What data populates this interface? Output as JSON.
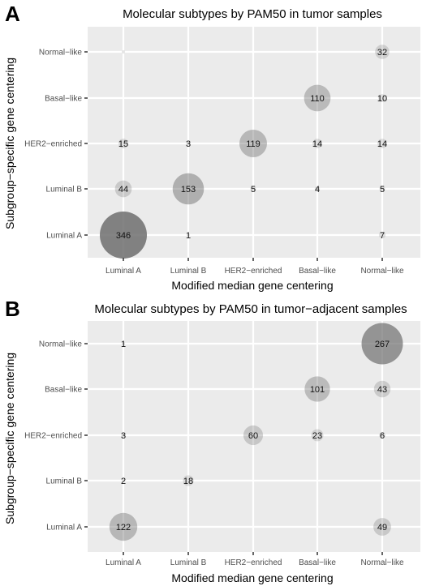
{
  "chart_data": [
    {
      "type": "scatter",
      "panel_letter": "A",
      "title": "Molecular subtypes by PAM50 in tumor samples",
      "xlabel": "Modified median gene centering",
      "ylabel": "Subgroup−specific gene centering",
      "x_categories": [
        "Luminal A",
        "Luminal B",
        "HER2−enriched",
        "Basal−like",
        "Normal−like"
      ],
      "y_categories": [
        "Luminal A",
        "Luminal B",
        "HER2−enriched",
        "Basal−like",
        "Normal−like"
      ],
      "grid": true,
      "points": [
        {
          "x": "Luminal A",
          "y": "Normal−like",
          "value": null
        },
        {
          "x": "Normal−like",
          "y": "Normal−like",
          "value": 32
        },
        {
          "x": "Basal−like",
          "y": "Basal−like",
          "value": 110
        },
        {
          "x": "Normal−like",
          "y": "Basal−like",
          "value": 10
        },
        {
          "x": "Luminal A",
          "y": "HER2−enriched",
          "value": 15
        },
        {
          "x": "Luminal B",
          "y": "HER2−enriched",
          "value": 3
        },
        {
          "x": "HER2−enriched",
          "y": "HER2−enriched",
          "value": 119
        },
        {
          "x": "Basal−like",
          "y": "HER2−enriched",
          "value": 14
        },
        {
          "x": "Normal−like",
          "y": "HER2−enriched",
          "value": 14
        },
        {
          "x": "Luminal A",
          "y": "Luminal B",
          "value": 44
        },
        {
          "x": "Luminal B",
          "y": "Luminal B",
          "value": 153
        },
        {
          "x": "HER2−enriched",
          "y": "Luminal B",
          "value": 5
        },
        {
          "x": "Basal−like",
          "y": "Luminal B",
          "value": 4
        },
        {
          "x": "Normal−like",
          "y": "Luminal B",
          "value": 5
        },
        {
          "x": "Luminal A",
          "y": "Luminal A",
          "value": 346
        },
        {
          "x": "Luminal B",
          "y": "Luminal A",
          "value": 1
        },
        {
          "x": "Normal−like",
          "y": "Luminal A",
          "value": 7
        }
      ]
    },
    {
      "type": "scatter",
      "panel_letter": "B",
      "title": "Molecular subtypes by PAM50 in tumor−adjacent samples",
      "xlabel": "Modified median gene centering",
      "ylabel": "Subgroup−specific gene centering",
      "x_categories": [
        "Luminal A",
        "Luminal B",
        "HER2−enriched",
        "Basal−like",
        "Normal−like"
      ],
      "y_categories": [
        "Luminal A",
        "Luminal B",
        "HER2−enriched",
        "Basal−like",
        "Normal−like"
      ],
      "grid": true,
      "points": [
        {
          "x": "Luminal A",
          "y": "Normal−like",
          "value": 1
        },
        {
          "x": "Normal−like",
          "y": "Normal−like",
          "value": 267
        },
        {
          "x": "Basal−like",
          "y": "Basal−like",
          "value": 101
        },
        {
          "x": "Normal−like",
          "y": "Basal−like",
          "value": 43
        },
        {
          "x": "Luminal A",
          "y": "HER2−enriched",
          "value": 3
        },
        {
          "x": "HER2−enriched",
          "y": "HER2−enriched",
          "value": 60
        },
        {
          "x": "Basal−like",
          "y": "HER2−enriched",
          "value": 23
        },
        {
          "x": "Normal−like",
          "y": "HER2−enriched",
          "value": 6
        },
        {
          "x": "Luminal A",
          "y": "Luminal B",
          "value": 2
        },
        {
          "x": "Luminal B",
          "y": "Luminal B",
          "value": 18
        },
        {
          "x": "Luminal A",
          "y": "Luminal A",
          "value": 122
        },
        {
          "x": "Normal−like",
          "y": "Luminal A",
          "value": 49
        }
      ]
    }
  ],
  "colors": {
    "panel_background": "#ebebeb",
    "grid_line": "#ffffff",
    "bubble_fill": "#6e6e6e"
  }
}
